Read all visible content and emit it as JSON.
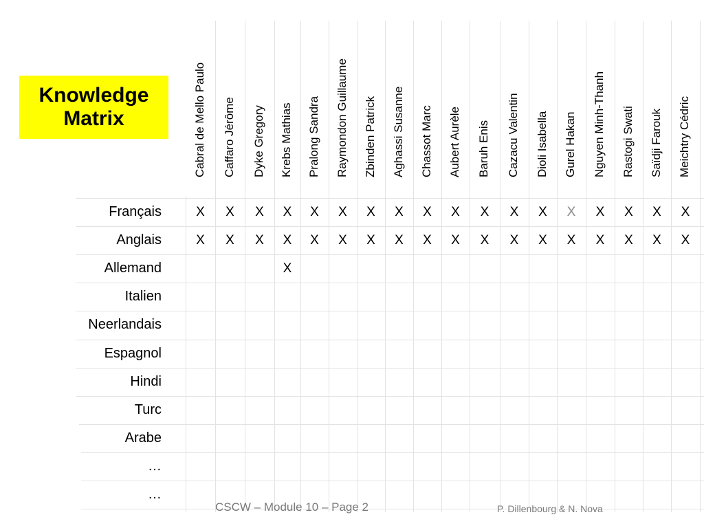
{
  "title": [
    "Knowledge",
    "Matrix"
  ],
  "people": [
    "Cabral de Mello Paulo",
    "Caffaro Jérôme",
    "Dyke Gregory",
    "Krebs Mathias",
    "Pralong Sandra",
    "Raymondon Guillaume",
    "Zbinden Patrick",
    "Aghassi Susanne",
    "Chassot Marc",
    "Aubert Aurèle",
    "Baruh Enis",
    "Cazacu Valentin",
    "Dioli Isabella",
    "Gurel Hakan",
    "Nguyen Minh-Thanh",
    "Rastogi Swati",
    "Saïdji Farouk",
    "Meichtry Cédric"
  ],
  "languages": [
    "Français",
    "Anglais",
    "Allemand",
    "Italien",
    "Neerlandais",
    "Espagnol",
    "Hindi",
    "Turc",
    "Arabe",
    "…",
    "…"
  ],
  "mark_symbol": "X",
  "marks": [
    {
      "row": 0,
      "cols": [
        0,
        1,
        2,
        3,
        4,
        5,
        6,
        7,
        8,
        9,
        10,
        11,
        12,
        13,
        14,
        15,
        16,
        17
      ],
      "faint_cols": [
        13
      ]
    },
    {
      "row": 1,
      "cols": [
        0,
        1,
        2,
        3,
        4,
        5,
        6,
        7,
        8,
        9,
        10,
        11,
        12,
        13,
        14,
        15,
        16,
        17
      ],
      "faint_cols": []
    },
    {
      "row": 2,
      "cols": [
        3
      ],
      "faint_cols": []
    }
  ],
  "footer": {
    "left": "CSCW – Module 10 – Page 2",
    "right": "P. Dillenbourg & N. Nova"
  },
  "colors": {
    "title_background": "#ffff00",
    "grid_lines": "#e3e3e3",
    "faint_mark": "#8a8a8a",
    "footer_text": "#7a7a7a"
  }
}
